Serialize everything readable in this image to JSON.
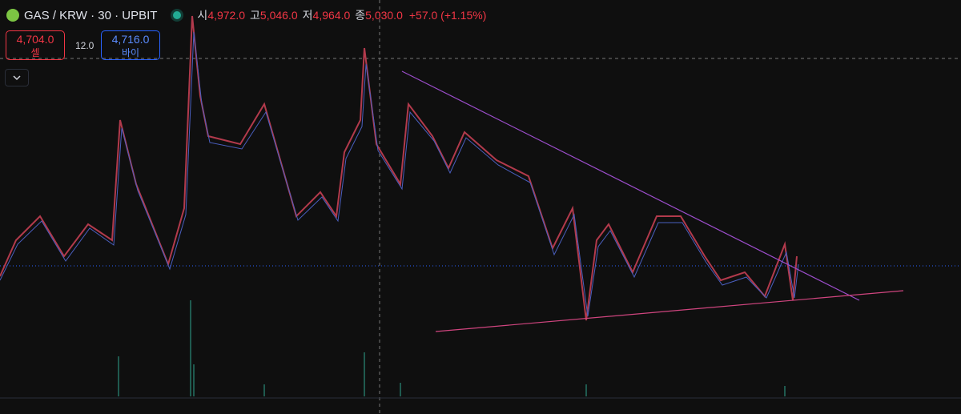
{
  "header": {
    "symbol": "GAS / KRW · 30 · UPBIT",
    "ohlc": [
      {
        "label": "시",
        "value": "4,972.0"
      },
      {
        "label": "고",
        "value": "5,046.0"
      },
      {
        "label": "저",
        "value": "4,964.0"
      },
      {
        "label": "종",
        "value": "5,030.0"
      }
    ],
    "change": "+57.0 (+1.15%)"
  },
  "trade": {
    "sell_price": "4,704.0",
    "sell_label": "셀",
    "spread": "12.0",
    "buy_price": "4,716.0",
    "buy_label": "바이"
  }
}
